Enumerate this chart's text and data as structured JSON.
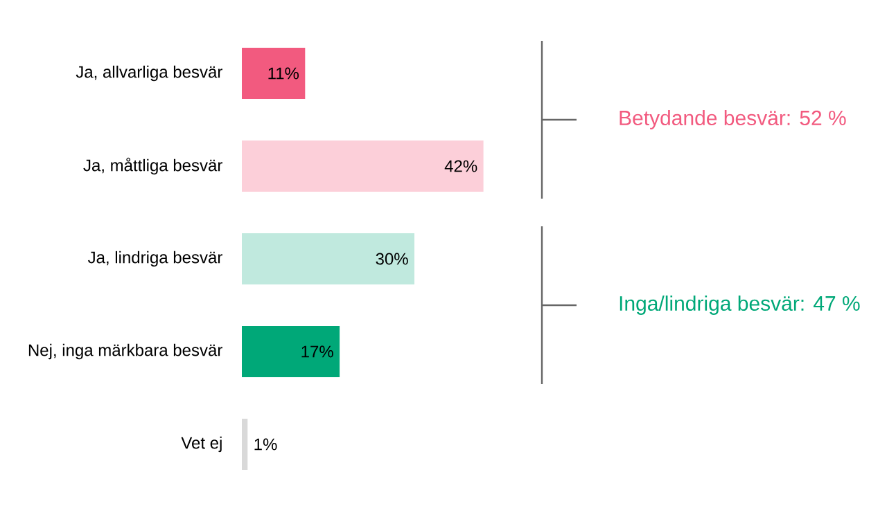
{
  "chart_data": {
    "type": "bar",
    "orientation": "horizontal",
    "categories": [
      "Ja, allvarliga besvär",
      "Ja, måttliga besvär",
      "Ja, lindriga besvär",
      "Nej, inga märkbara besvär",
      "Vet ej"
    ],
    "values": [
      11,
      42,
      30,
      17,
      1
    ],
    "colors": [
      "#f25a7f",
      "#fccfd9",
      "#c0e9de",
      "#00a878",
      "#d9d9d9"
    ],
    "value_labels": [
      "11%",
      "42%",
      "30%",
      "17%",
      "1%"
    ],
    "annotations": [
      "Betydande besvär: 52 %",
      "Inga/lindriga besvär: 47 %"
    ]
  }
}
